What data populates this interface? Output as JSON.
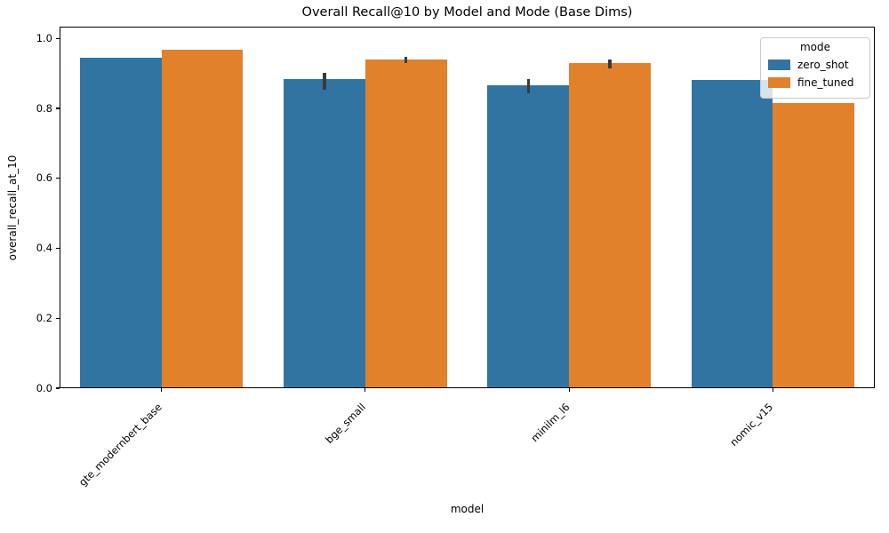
{
  "chart_data": {
    "type": "bar",
    "title": "Overall Recall@10 by Model and Mode (Base Dims)",
    "xlabel": "model",
    "ylabel": "overall_recall_at_10",
    "categories": [
      "gte_modernbert_base",
      "bge_small",
      "minilm_l6",
      "nomic_v15"
    ],
    "series": [
      {
        "name": "zero_shot",
        "color": "#3274a1",
        "values": [
          0.944,
          0.883,
          0.866,
          0.882
        ],
        "ci": [
          null,
          [
            0.853,
            0.903
          ],
          [
            0.843,
            0.885
          ],
          null
        ]
      },
      {
        "name": "fine_tuned",
        "color": "#e1812c",
        "values": [
          0.969,
          0.939,
          0.931,
          0.815
        ],
        "ci": [
          null,
          [
            0.93,
            0.948
          ],
          [
            0.914,
            0.94
          ],
          null
        ]
      }
    ],
    "yticks": [
      0.0,
      0.2,
      0.4,
      0.6,
      0.8,
      1.0
    ],
    "ylim": [
      0,
      1.034
    ],
    "grid": false,
    "legend": {
      "title": "mode",
      "position": "upper right"
    },
    "error_bar_color": "#3a3a3a"
  }
}
